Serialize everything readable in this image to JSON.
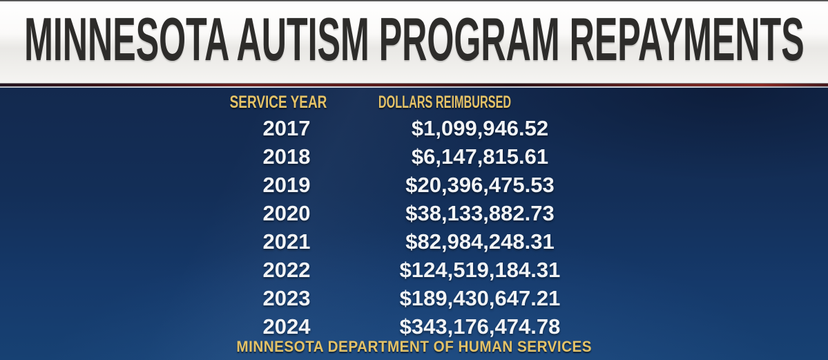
{
  "title_bar": {
    "title": "MINNESOTA AUTISM PROGRAM REPAYMENTS"
  },
  "table": {
    "col_service_year": "SERVICE YEAR",
    "col_dollars_reimbursed": "DOLLARS REIMBURSED",
    "rows": [
      {
        "year": "2017",
        "amount": "$1,099,946.52"
      },
      {
        "year": "2018",
        "amount": "$6,147,815.61"
      },
      {
        "year": "2019",
        "amount": "$20,396,475.53"
      },
      {
        "year": "2020",
        "amount": "$38,133,882.73"
      },
      {
        "year": "2021",
        "amount": "$82,984,248.31"
      },
      {
        "year": "2022",
        "amount": "$124,519,184.31"
      },
      {
        "year": "2023",
        "amount": "$189,430,647.21"
      },
      {
        "year": "2024",
        "amount": "$343,176,474.78"
      }
    ]
  },
  "footer": {
    "source_label": "MINNESOTA DEPARTMENT OF HUMAN SERVICES"
  },
  "colors": {
    "gold": "#e4c267",
    "navy_top": "#13294e",
    "navy_bottom": "#174173",
    "title_text": "#2d2c2a",
    "value_text": "#f2f4f6",
    "maroon_stripe": "#6b2220"
  },
  "chart_data": {
    "type": "table",
    "title": "MINNESOTA AUTISM PROGRAM REPAYMENTS",
    "columns": [
      "SERVICE YEAR",
      "DOLLARS REIMBURSED"
    ],
    "categories": [
      "2017",
      "2018",
      "2019",
      "2020",
      "2021",
      "2022",
      "2023",
      "2024"
    ],
    "values": [
      1099946.52,
      6147815.61,
      20396475.53,
      38133882.73,
      82984248.31,
      124519184.31,
      189430647.21,
      343176474.78
    ],
    "value_labels": [
      "$1,099,946.52",
      "$6,147,815.61",
      "$20,396,475.53",
      "$38,133,882.73",
      "$82,984,248.31",
      "$124,519,184.31",
      "$189,430,647.21",
      "$343,176,474.78"
    ],
    "source": "MINNESOTA DEPARTMENT OF HUMAN SERVICES",
    "xlabel": "SERVICE YEAR",
    "ylabel": "DOLLARS REIMBURSED"
  }
}
